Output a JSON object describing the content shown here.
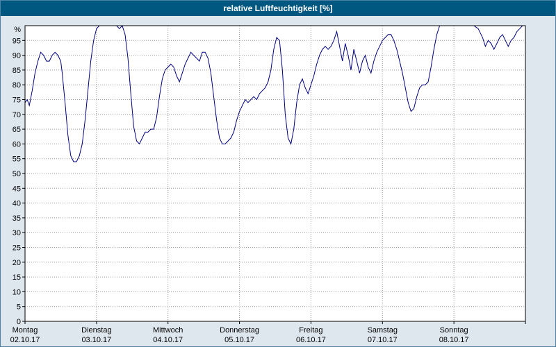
{
  "title": "relative Luftfeuchtigkeit [%]",
  "colors": {
    "titlebar": "#005880",
    "line": "#000080",
    "grid": "#999999",
    "plot_bg": "#ffffff",
    "axis": "#000000",
    "page_bg": "#dfe7ee"
  },
  "y_axis": {
    "unit_label": "%",
    "ticks": [
      95,
      90,
      85,
      80,
      75,
      70,
      65,
      60,
      55,
      50,
      45,
      40,
      35,
      30,
      25,
      20,
      15,
      10,
      5,
      0
    ]
  },
  "x_axis": {
    "days": [
      {
        "name": "Montag",
        "date": "02.10.17"
      },
      {
        "name": "Dienstag",
        "date": "03.10.17"
      },
      {
        "name": "Mittwoch",
        "date": "04.10.17"
      },
      {
        "name": "Donnerstag",
        "date": "05.10.17"
      },
      {
        "name": "Freitag",
        "date": "06.10.17"
      },
      {
        "name": "Samstag",
        "date": "07.10.17"
      },
      {
        "name": "Sonntag",
        "date": "08.10.17"
      }
    ]
  },
  "chart_data": {
    "type": "line",
    "title": "relative Luftfeuchtigkeit [%]",
    "ylabel": "%",
    "ylim": [
      0,
      100
    ],
    "xlim": [
      0,
      7
    ],
    "x_unit": "days from Montag 02.10.17",
    "grid": true,
    "legend": false,
    "x": [
      0.0,
      0.03,
      0.06,
      0.1,
      0.14,
      0.18,
      0.22,
      0.26,
      0.3,
      0.34,
      0.38,
      0.42,
      0.46,
      0.5,
      0.52,
      0.56,
      0.6,
      0.64,
      0.68,
      0.72,
      0.76,
      0.8,
      0.84,
      0.88,
      0.92,
      0.96,
      1.0,
      1.04,
      1.1,
      1.16,
      1.22,
      1.28,
      1.32,
      1.36,
      1.4,
      1.44,
      1.48,
      1.52,
      1.56,
      1.6,
      1.64,
      1.68,
      1.72,
      1.76,
      1.8,
      1.84,
      1.88,
      1.92,
      1.96,
      2.0,
      2.04,
      2.08,
      2.12,
      2.16,
      2.2,
      2.24,
      2.28,
      2.32,
      2.36,
      2.4,
      2.44,
      2.48,
      2.52,
      2.56,
      2.6,
      2.64,
      2.68,
      2.72,
      2.76,
      2.8,
      2.84,
      2.88,
      2.92,
      2.96,
      3.0,
      3.04,
      3.08,
      3.12,
      3.16,
      3.2,
      3.24,
      3.28,
      3.32,
      3.36,
      3.4,
      3.44,
      3.48,
      3.52,
      3.56,
      3.6,
      3.64,
      3.68,
      3.72,
      3.76,
      3.8,
      3.84,
      3.88,
      3.92,
      3.96,
      4.0,
      4.04,
      4.08,
      4.12,
      4.16,
      4.2,
      4.24,
      4.28,
      4.32,
      4.36,
      4.4,
      4.44,
      4.48,
      4.52,
      4.56,
      4.6,
      4.64,
      4.68,
      4.72,
      4.76,
      4.8,
      4.84,
      4.88,
      4.92,
      4.96,
      5.0,
      5.04,
      5.08,
      5.12,
      5.16,
      5.2,
      5.24,
      5.28,
      5.32,
      5.36,
      5.4,
      5.44,
      5.48,
      5.52,
      5.56,
      5.6,
      5.64,
      5.68,
      5.72,
      5.76,
      5.8,
      5.88,
      5.96,
      6.04,
      6.12,
      6.2,
      6.28,
      6.34,
      6.4,
      6.44,
      6.48,
      6.52,
      6.56,
      6.6,
      6.64,
      6.68,
      6.72,
      6.76,
      6.8,
      6.84,
      6.88,
      6.92,
      6.96,
      7.0
    ],
    "y": [
      74,
      75,
      73,
      78,
      84,
      88,
      91,
      90,
      88,
      88,
      90,
      91,
      90,
      88,
      84,
      74,
      63,
      56,
      54,
      54,
      56,
      60,
      68,
      78,
      88,
      95,
      99,
      100,
      100,
      100,
      100,
      100,
      99,
      100,
      97,
      89,
      77,
      66,
      61,
      60,
      62,
      64,
      64,
      65,
      65,
      69,
      76,
      82,
      85,
      86,
      87,
      86,
      83,
      81,
      84,
      87,
      89,
      91,
      90,
      89,
      88,
      91,
      91,
      89,
      84,
      76,
      68,
      62,
      60,
      60,
      61,
      62,
      64,
      68,
      71,
      73,
      75,
      74,
      75,
      76,
      75,
      77,
      78,
      79,
      81,
      85,
      92,
      96,
      95,
      85,
      70,
      62,
      60,
      65,
      74,
      80,
      82,
      79,
      77,
      80,
      83,
      87,
      90,
      92,
      93,
      92,
      93,
      95,
      98,
      93,
      88,
      94,
      90,
      85,
      92,
      88,
      84,
      88,
      90,
      86,
      84,
      88,
      91,
      93,
      95,
      96,
      97,
      97,
      95,
      92,
      88,
      84,
      79,
      74,
      71,
      72,
      76,
      79,
      80,
      80,
      81,
      86,
      92,
      97,
      100,
      100,
      100,
      100,
      100,
      100,
      100,
      99,
      96,
      93,
      95,
      94,
      92,
      94,
      96,
      97,
      95,
      93,
      95,
      96,
      98,
      99,
      100,
      100
    ]
  }
}
